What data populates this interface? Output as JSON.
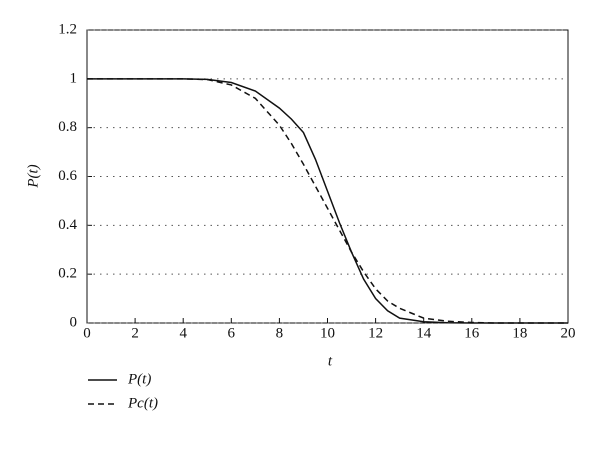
{
  "chart_data": {
    "type": "line",
    "x_label": "t",
    "y_label": "P(t)",
    "x": [
      0,
      1,
      2,
      3,
      4,
      5,
      6,
      7,
      8,
      8.5,
      9,
      9.5,
      10,
      10.5,
      11,
      11.5,
      12,
      12.5,
      13,
      14,
      15,
      16,
      17,
      18,
      19,
      20
    ],
    "series": [
      {
        "name": "P(t)",
        "color": "#111111",
        "dash": "solid",
        "values": [
          1,
          1,
          1,
          1,
          1,
          0.998,
          0.985,
          0.95,
          0.88,
          0.835,
          0.78,
          0.67,
          0.54,
          0.41,
          0.29,
          0.18,
          0.1,
          0.05,
          0.02,
          0.005,
          0.001,
          0,
          0,
          0,
          0,
          0
        ]
      },
      {
        "name": "Pc(t)",
        "color": "#111111",
        "dash": "dashed",
        "values": [
          1,
          1,
          1,
          1,
          1,
          0.997,
          0.975,
          0.92,
          0.81,
          0.735,
          0.65,
          0.56,
          0.47,
          0.38,
          0.29,
          0.21,
          0.14,
          0.09,
          0.06,
          0.02,
          0.007,
          0.002,
          0,
          0,
          0,
          0
        ]
      }
    ],
    "xlim": [
      0,
      20
    ],
    "xticks": [
      0,
      2,
      4,
      6,
      8,
      10,
      12,
      14,
      16,
      18,
      20
    ],
    "ylim": [
      0,
      1.2
    ],
    "yticks": [
      0,
      0.2,
      0.4,
      0.6,
      0.8,
      1,
      1.2
    ],
    "grid": true,
    "legend": "bottom-left"
  }
}
